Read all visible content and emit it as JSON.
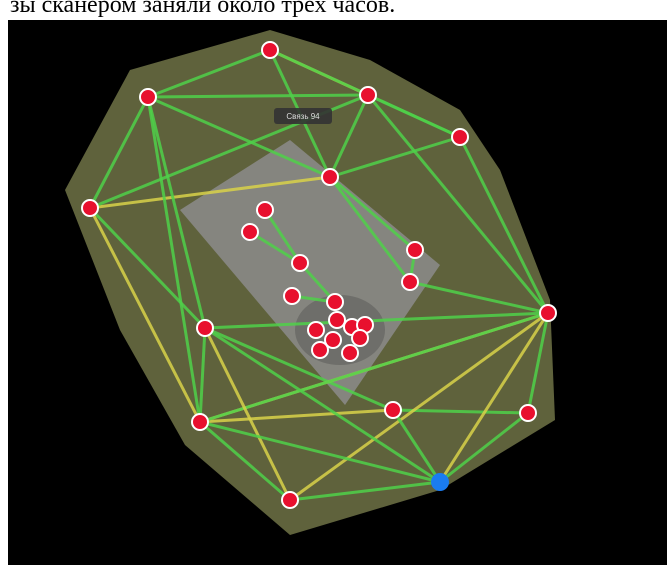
{
  "caption": "зы сканером заняли около трех часов.",
  "tooltip": "Связь 94"
}
